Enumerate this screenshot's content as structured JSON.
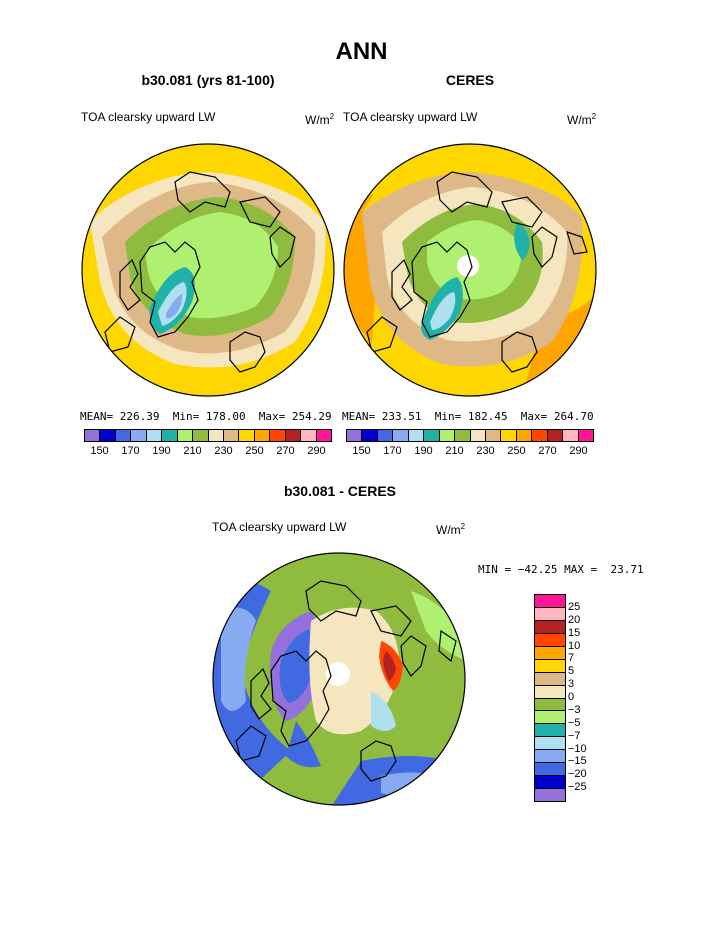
{
  "figure": {
    "title": "ANN"
  },
  "colors": {
    "abs_palette": [
      "#9370db",
      "#0000cd",
      "#4169e1",
      "#87aaf0",
      "#aee0f0",
      "#20b2aa",
      "#b0f070",
      "#8fbc3f",
      "#f5e6c0",
      "#deb887",
      "#ffd700",
      "#ffa500",
      "#ff4500",
      "#b22222",
      "#ffb6c1",
      "#ff1493"
    ],
    "diff_palette": [
      "#ff1493",
      "#ffb6c1",
      "#b22222",
      "#ff4500",
      "#ffa500",
      "#ffd700",
      "#deb887",
      "#f5e6c0",
      "#8fbc3f",
      "#b0f070",
      "#20b2aa",
      "#aee0f0",
      "#87aaf0",
      "#4169e1",
      "#0000cd",
      "#9370db"
    ],
    "land_outline": "#000000"
  },
  "chart_data": [
    {
      "type": "heatmap",
      "projection": "north-polar-stereographic",
      "title": "b30.081 (yrs 81-100)",
      "subtitle": "TOA clearsky upward LW",
      "units": "W/m",
      "units_sup": "2",
      "stats": {
        "mean": "226.39",
        "min": "178.00",
        "max": "254.29"
      },
      "stats_text": "MEAN= 226.39  Min= 178.00  Max= 254.29",
      "colorbar_ticks": [
        "150",
        "170",
        "190",
        "210",
        "230",
        "250",
        "270",
        "290"
      ]
    },
    {
      "type": "heatmap",
      "projection": "north-polar-stereographic",
      "title": "CERES",
      "subtitle": "TOA clearsky upward LW",
      "units": "W/m",
      "units_sup": "2",
      "stats": {
        "mean": "233.51",
        "min": "182.45",
        "max": "264.70"
      },
      "stats_text": "MEAN= 233.51  Min= 182.45  Max= 264.70",
      "colorbar_ticks": [
        "150",
        "170",
        "190",
        "210",
        "230",
        "250",
        "270",
        "290"
      ]
    },
    {
      "type": "heatmap",
      "projection": "north-polar-stereographic",
      "title": "b30.081 - CERES",
      "subtitle": "TOA clearsky upward LW",
      "units": "W/m",
      "units_sup": "2",
      "stats": {
        "min": "-42.25",
        "max": "23.71"
      },
      "stats_text": "MIN = −42.25 MAX =  23.71",
      "colorbar_levels": [
        "25",
        "20",
        "15",
        "10",
        "7",
        "5",
        "3",
        "0",
        "−3",
        "−5",
        "−7",
        "−10",
        "−15",
        "−20",
        "−25"
      ]
    }
  ]
}
